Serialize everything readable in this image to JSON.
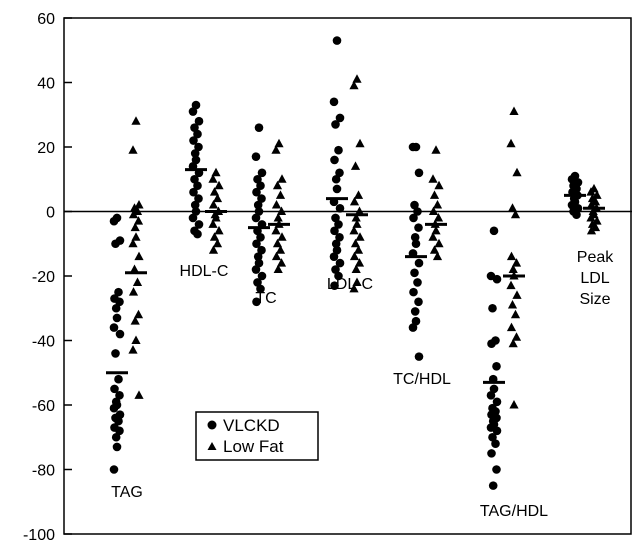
{
  "chart_data": {
    "type": "scatter",
    "title": "",
    "xlabel": "",
    "ylabel": "",
    "ylim": [
      -100,
      60
    ],
    "yticks": [
      60,
      40,
      20,
      0,
      -20,
      -40,
      -60,
      -80,
      -100
    ],
    "zero_line": true,
    "grid": false,
    "legend": {
      "placement": "bottom-left-center",
      "entries": [
        {
          "marker": "circle",
          "label": "VLCKD"
        },
        {
          "marker": "triangle",
          "label": "Low Fat"
        }
      ]
    },
    "colors": {
      "marker": "#000000",
      "axis": "#000000",
      "background": "#ffffff"
    },
    "groups": [
      {
        "label": [
          "TAG"
        ],
        "series": [
          {
            "name": "VLCKD",
            "mean": -50,
            "values": [
              -2,
              -3,
              -9,
              -10,
              -25,
              -27,
              -28,
              -30,
              -33,
              -36,
              -38,
              -44,
              -52,
              -55,
              -57,
              -59,
              -60,
              -61,
              -63,
              -64,
              -65,
              -67,
              -68,
              -70,
              -73,
              -80
            ]
          },
          {
            "name": "Low Fat",
            "mean": -19,
            "values": [
              28,
              19,
              2,
              1,
              0,
              -1,
              -3,
              -5,
              -8,
              -10,
              -14,
              -18,
              -22,
              -25,
              -32,
              -34,
              -40,
              -43,
              -57
            ]
          }
        ]
      },
      {
        "label": [
          "HDL-C"
        ],
        "series": [
          {
            "name": "VLCKD",
            "mean": 13,
            "values": [
              33,
              31,
              28,
              26,
              24,
              22,
              20,
              18,
              16,
              14,
              12,
              10,
              8,
              6,
              4,
              2,
              0,
              -2,
              -4,
              -6,
              -7
            ]
          },
          {
            "name": "Low Fat",
            "mean": 0,
            "values": [
              12,
              10,
              8,
              6,
              4,
              2,
              0,
              -1,
              -2,
              -4,
              -6,
              -8,
              -10,
              -12
            ]
          }
        ]
      },
      {
        "label": [
          "TC"
        ],
        "series": [
          {
            "name": "VLCKD",
            "mean": -5,
            "values": [
              26,
              17,
              12,
              10,
              8,
              6,
              4,
              2,
              0,
              -2,
              -4,
              -6,
              -8,
              -10,
              -12,
              -14,
              -16,
              -18,
              -20,
              -22,
              -24,
              -28
            ]
          },
          {
            "name": "Low Fat",
            "mean": -4,
            "values": [
              21,
              19,
              10,
              8,
              5,
              2,
              0,
              -2,
              -4,
              -6,
              -8,
              -10,
              -12,
              -14,
              -16,
              -18
            ]
          }
        ]
      },
      {
        "label": [
          "LDL-C"
        ],
        "series": [
          {
            "name": "VLCKD",
            "mean": 4,
            "values": [
              53,
              34,
              29,
              27,
              19,
              16,
              12,
              10,
              7,
              3,
              1,
              -2,
              -4,
              -6,
              -8,
              -10,
              -12,
              -14,
              -16,
              -18,
              -20,
              -23
            ]
          },
          {
            "name": "Low Fat",
            "mean": -1,
            "values": [
              41,
              39,
              21,
              14,
              5,
              3,
              0,
              -2,
              -4,
              -6,
              -8,
              -10,
              -12,
              -14,
              -16,
              -18,
              -22,
              -24
            ]
          }
        ]
      },
      {
        "label": [
          "TC/HDL"
        ],
        "series": [
          {
            "name": "VLCKD",
            "mean": -14,
            "values": [
              20,
              20,
              12,
              2,
              0,
              -2,
              -5,
              -8,
              -10,
              -13,
              -16,
              -19,
              -22,
              -25,
              -28,
              -31,
              -34,
              -36,
              -45
            ]
          },
          {
            "name": "Low Fat",
            "mean": -4,
            "values": [
              19,
              10,
              8,
              5,
              2,
              0,
              -2,
              -4,
              -6,
              -8,
              -10,
              -12,
              -14
            ]
          }
        ]
      },
      {
        "label": [
          "TAG/HDL"
        ],
        "series": [
          {
            "name": "VLCKD",
            "mean": -53,
            "values": [
              -6,
              -20,
              -21,
              -30,
              -40,
              -41,
              -48,
              -52,
              -55,
              -57,
              -59,
              -61,
              -62,
              -63,
              -64,
              -65,
              -66,
              -67,
              -68,
              -70,
              -72,
              -75,
              -80,
              -85
            ]
          },
          {
            "name": "Low Fat",
            "mean": -20,
            "values": [
              31,
              21,
              12,
              1,
              -1,
              -14,
              -16,
              -18,
              -20,
              -23,
              -26,
              -29,
              -32,
              -36,
              -39,
              -41,
              -60
            ]
          }
        ]
      },
      {
        "label": [
          "Peak",
          "LDL",
          "Size"
        ],
        "series": [
          {
            "name": "VLCKD",
            "mean": 5,
            "values": [
              11,
              10,
              9,
              8,
              7,
              6,
              5,
              4,
              3,
              2,
              1,
              0,
              -1
            ]
          },
          {
            "name": "Low Fat",
            "mean": 1,
            "values": [
              7,
              6,
              5,
              4,
              3,
              2,
              1,
              0,
              -1,
              -2,
              -3,
              -4,
              -5,
              -6
            ]
          }
        ]
      }
    ]
  }
}
